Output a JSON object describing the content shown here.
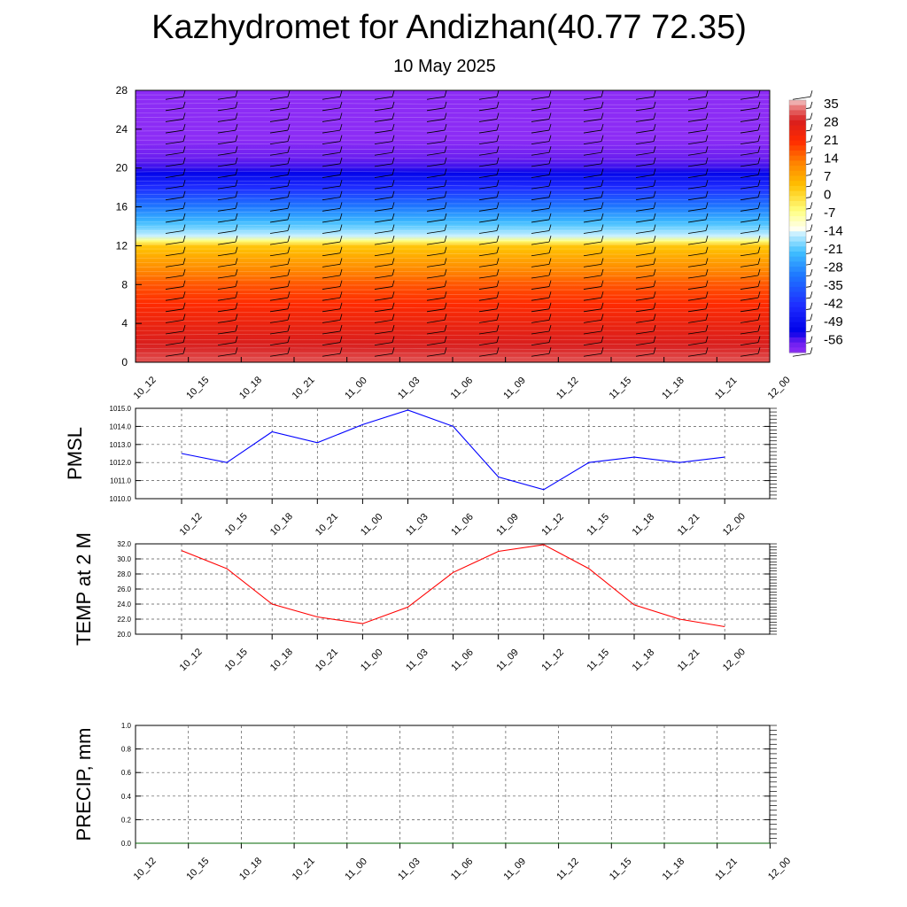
{
  "title": "Kazhydromet for Andizhan(40.77 72.35)",
  "subtitle": "10 May 2025",
  "chart_data": [
    {
      "type": "heatmap",
      "name": "vertical-cross-section",
      "x_labels": [
        "10_12",
        "10_15",
        "10_18",
        "10_21",
        "11_00",
        "11_03",
        "11_06",
        "11_09",
        "11_12",
        "11_15",
        "11_18",
        "11_21",
        "12_00"
      ],
      "y_ticks": [
        0,
        4,
        8,
        12,
        16,
        20,
        24,
        28
      ],
      "ylim": [
        0,
        28
      ],
      "colorbar_labels": [
        35,
        28,
        21,
        14,
        7,
        0,
        -7,
        -14,
        -21,
        -28,
        -35,
        -42,
        -49,
        -56
      ],
      "colorbar_range": [
        -60,
        38
      ],
      "profile_levels": [
        0,
        4,
        8,
        12,
        13,
        16,
        20,
        24,
        28
      ],
      "profile_values": [
        33,
        26,
        18,
        4,
        -14,
        -30,
        -54,
        -62,
        -60
      ],
      "wind_barbs": true,
      "colors": {
        "warm": "#e31a1c",
        "cold": "#1a1aff",
        "top": "#8d2cf0"
      }
    },
    {
      "type": "line",
      "name": "pmsl",
      "ylabel": "PMSL",
      "x": [
        "10_12",
        "10_15",
        "10_18",
        "10_21",
        "11_00",
        "11_03",
        "11_06",
        "11_09",
        "11_12",
        "11_15",
        "11_18",
        "11_21",
        "12_00"
      ],
      "y_ticks": [
        "1010.0",
        "1011.0",
        "1012.0",
        "1013.0",
        "1014.0",
        "1015.0"
      ],
      "ylim": [
        1010,
        1015
      ],
      "series": [
        {
          "values": [
            1012.5,
            1012.0,
            1013.7,
            1013.1,
            1014.1,
            1014.9,
            1014.0,
            1011.2,
            1010.5,
            1012.0,
            1012.3,
            1012.0,
            1012.3
          ],
          "color": "#0000ff"
        }
      ]
    },
    {
      "type": "line",
      "name": "temp-2m",
      "ylabel": "TEMP at 2 M",
      "x": [
        "10_12",
        "10_15",
        "10_18",
        "10_21",
        "11_00",
        "11_03",
        "11_06",
        "11_09",
        "11_12",
        "11_15",
        "11_18",
        "11_21",
        "12_00"
      ],
      "y_ticks": [
        "20.0",
        "22.0",
        "24.0",
        "26.0",
        "28.0",
        "30.0",
        "32.0"
      ],
      "ylim": [
        20,
        32
      ],
      "series": [
        {
          "values": [
            31.1,
            28.7,
            24.0,
            22.3,
            21.4,
            23.6,
            28.2,
            31.0,
            31.9,
            28.7,
            23.9,
            22.0,
            21.0
          ],
          "color": "#ff0000"
        }
      ]
    },
    {
      "type": "line",
      "name": "precip",
      "ylabel": "PRECIP, mm",
      "x": [
        "10_12",
        "10_15",
        "10_18",
        "10_21",
        "11_00",
        "11_03",
        "11_06",
        "11_09",
        "11_12",
        "11_15",
        "11_18",
        "11_21",
        "12_00"
      ],
      "y_ticks": [
        "0.0",
        "0.2",
        "0.4",
        "0.6",
        "0.8",
        "1.0"
      ],
      "ylim": [
        0,
        1
      ],
      "series": [
        {
          "values": [
            0,
            0,
            0,
            0,
            0,
            0,
            0,
            0,
            0,
            0,
            0,
            0,
            0
          ],
          "color": "#006400"
        }
      ]
    }
  ]
}
